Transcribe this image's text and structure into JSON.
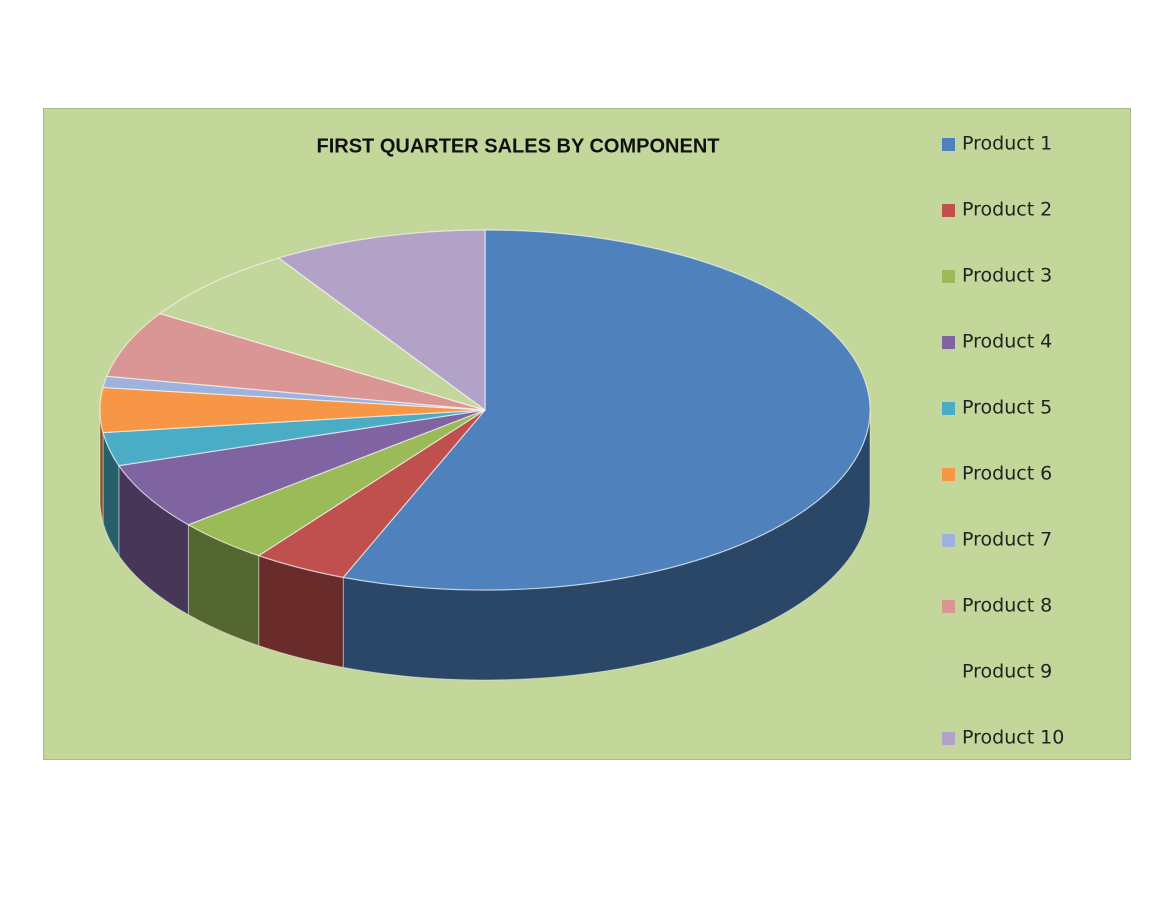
{
  "chart_data": {
    "type": "pie",
    "title": "FIRST QUARTER SALES BY COMPONENT",
    "categories": [
      "Product 1",
      "Product 2",
      "Product 3",
      "Product 4",
      "Product 5",
      "Product 6",
      "Product 7",
      "Product 8",
      "Product 9",
      "Product 10"
    ],
    "values": [
      56,
      4,
      4,
      6,
      3,
      4,
      1,
      6,
      7,
      9
    ],
    "colors": [
      "#4F81BD",
      "#C0504D",
      "#9BBB59",
      "#8064A2",
      "#4BACC6",
      "#F79646",
      "#9DB3DD",
      "#D99694",
      "#C3D69B",
      "#B3A2C7"
    ],
    "legend": "right"
  }
}
